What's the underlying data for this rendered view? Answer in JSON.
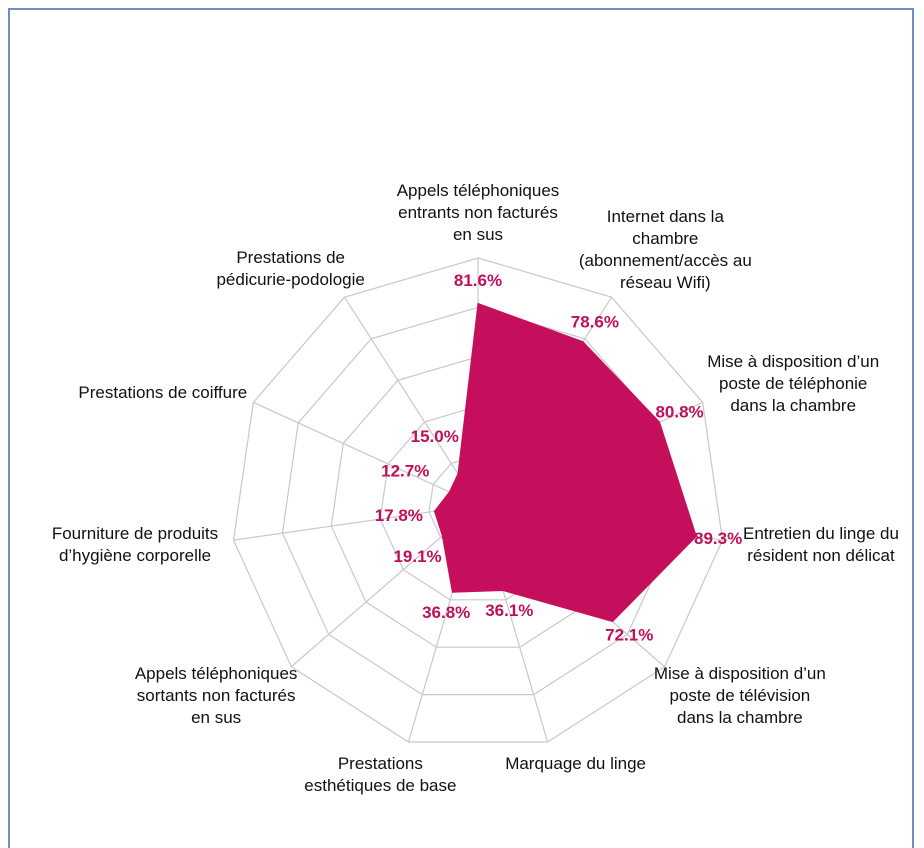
{
  "chart_data": {
    "type": "radar",
    "categories": [
      "Appels téléphoniques entrants non facturés en sus",
      "Internet dans la chambre (abonnement/accès au réseau Wifi)",
      "Mise à disposition d’un poste de téléphonie dans la chambre",
      "Entretien du linge du résident non délicat",
      "Mise à disposition d’un poste de télévision dans la chambre",
      "Marquage du linge",
      "Prestations esthétiques de base",
      "Appels téléphoniques sortants non facturés en sus",
      "Fourniture de produits d’hygiène corporelle",
      "Prestations de coiffure",
      "Prestations de pédicurie-podologie"
    ],
    "values": [
      81.6,
      78.6,
      80.8,
      89.3,
      72.1,
      36.1,
      36.8,
      19.1,
      17.8,
      12.7,
      15.0
    ],
    "value_labels": [
      "81.6%",
      "78.6%",
      "80.8%",
      "89.3%",
      "72.1%",
      "36.1%",
      "36.8%",
      "19.1%",
      "17.8%",
      "12.7%",
      "15.0%"
    ],
    "color": "#c50f5c",
    "ylim": [
      0,
      100
    ],
    "yticks": [
      0,
      20,
      40,
      60,
      80,
      100
    ],
    "grid": true
  }
}
